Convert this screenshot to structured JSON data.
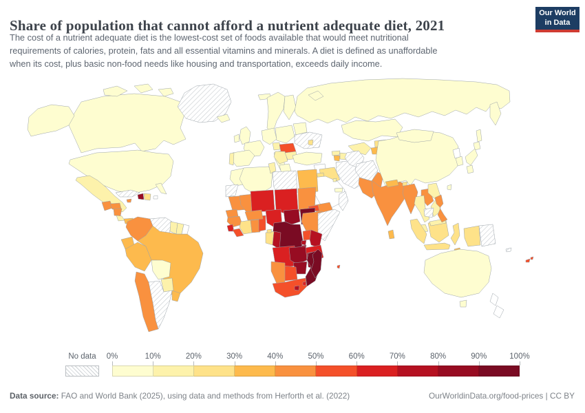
{
  "header": {
    "title": "Share of population that cannot afford a nutrient adequate diet, 2021",
    "subtitle_lines": {
      "0": "The cost of a nutrient adequate diet is the lowest-cost set of foods available that would meet nutritional",
      "1": "requirements of calories, protein, fats and all essential vitamins and minerals. A diet is defined as unaffordable",
      "2": "when its cost, plus basic non-food needs like housing and transportation, exceeds daily income."
    },
    "logo": {
      "line1": "Our World",
      "line2": "in Data",
      "bg": "#1d3d63",
      "accent": "#cf3b32"
    }
  },
  "legend": {
    "no_data_label": "No data",
    "tick_labels": [
      "0%",
      "10%",
      "20%",
      "30%",
      "40%",
      "50%",
      "60%",
      "70%",
      "80%",
      "90%",
      "100%"
    ],
    "bin_colors": [
      "#fefdd0",
      "#fdf2ab",
      "#fee289",
      "#fdba4d",
      "#f9913f",
      "#f4502a",
      "#da2021",
      "#b51121",
      "#970c22",
      "#7a0b23"
    ]
  },
  "footer": {
    "source_label": "Data source:",
    "source_text": " FAO and World Bank (2025), using data and methods from Herforth et al. (2022)",
    "right_text": "OurWorldinData.org/food-prices | CC BY"
  },
  "chart_data": {
    "type": "choropleth-map",
    "title": "Share of population that cannot afford a nutrient adequate diet",
    "year": 2021,
    "unit": "% of population",
    "projection": "world",
    "legend_bins": [
      {
        "range": "0–10%",
        "color": "#fefdd0"
      },
      {
        "range": "10–20%",
        "color": "#fdf2ab"
      },
      {
        "range": "20–30%",
        "color": "#fee289"
      },
      {
        "range": "30–40%",
        "color": "#fdba4d"
      },
      {
        "range": "40–50%",
        "color": "#f9913f"
      },
      {
        "range": "50–60%",
        "color": "#f4502a"
      },
      {
        "range": "60–70%",
        "color": "#da2021"
      },
      {
        "range": "70–80%",
        "color": "#b51121"
      },
      {
        "range": "80–90%",
        "color": "#970c22"
      },
      {
        "range": "90–100%",
        "color": "#7a0b23"
      }
    ],
    "no_data": {
      "label": "No data",
      "style": "gray diagonal hatching"
    },
    "countries": [
      {
        "id": "canada",
        "name": "Canada",
        "value": "0–10%",
        "bin": 0
      },
      {
        "id": "usa",
        "name": "United States",
        "value": "0–10%",
        "bin": 0
      },
      {
        "id": "greenland",
        "name": "Greenland",
        "value": "No data",
        "bin": -1
      },
      {
        "id": "mexico",
        "name": "Mexico",
        "value": "10–20%",
        "bin": 1
      },
      {
        "id": "guatemala",
        "name": "Guatemala",
        "value": "40–50%",
        "bin": 4
      },
      {
        "id": "honduras",
        "name": "Honduras",
        "value": "40–50%",
        "bin": 4
      },
      {
        "id": "nicaragua",
        "name": "Nicaragua",
        "value": "40–50%",
        "bin": 4
      },
      {
        "id": "costa-rica",
        "name": "Costa Rica",
        "value": "10–20%",
        "bin": 1
      },
      {
        "id": "panama",
        "name": "Panama",
        "value": "30–40%",
        "bin": 3
      },
      {
        "id": "cuba",
        "name": "Cuba",
        "value": "No data",
        "bin": -1
      },
      {
        "id": "haiti",
        "name": "Haiti",
        "value": "80–90%",
        "bin": 8
      },
      {
        "id": "dominican-republic",
        "name": "Dominican Republic",
        "value": "20–30%",
        "bin": 2
      },
      {
        "id": "jamaica",
        "name": "Jamaica",
        "value": "40–50%",
        "bin": 4
      },
      {
        "id": "puerto-rico",
        "name": "Puerto Rico",
        "value": "No data",
        "bin": -2
      },
      {
        "id": "colombia",
        "name": "Colombia",
        "value": "40–50%",
        "bin": 4
      },
      {
        "id": "venezuela",
        "name": "Venezuela",
        "value": "No data",
        "bin": -1
      },
      {
        "id": "guyana",
        "name": "Guyana",
        "value": "10–20%",
        "bin": 1
      },
      {
        "id": "suriname",
        "name": "Suriname",
        "value": "10–20%",
        "bin": 1
      },
      {
        "id": "french-guiana",
        "name": "French Guiana",
        "value": "No data",
        "bin": -2
      },
      {
        "id": "ecuador",
        "name": "Ecuador",
        "value": "30–40%",
        "bin": 3
      },
      {
        "id": "peru",
        "name": "Peru",
        "value": "30–40%",
        "bin": 3
      },
      {
        "id": "brazil",
        "name": "Brazil",
        "value": "30–40%",
        "bin": 3
      },
      {
        "id": "bolivia",
        "name": "Bolivia",
        "value": "0–10%",
        "bin": 0
      },
      {
        "id": "paraguay",
        "name": "Paraguay",
        "value": "10–20%",
        "bin": 1
      },
      {
        "id": "chile",
        "name": "Chile",
        "value": "40–50%",
        "bin": 4
      },
      {
        "id": "argentina",
        "name": "Argentina",
        "value": "No data",
        "bin": -1
      },
      {
        "id": "uruguay",
        "name": "Uruguay",
        "value": "30–40%",
        "bin": 3
      },
      {
        "id": "iceland",
        "name": "Iceland",
        "value": "0–10%",
        "bin": 0
      },
      {
        "id": "svalbard",
        "name": "Svalbard",
        "value": "0–10%",
        "bin": 0
      },
      {
        "id": "united-kingdom",
        "name": "United Kingdom",
        "value": "0–10%",
        "bin": 0
      },
      {
        "id": "ireland",
        "name": "Ireland",
        "value": "0–10%",
        "bin": 0
      },
      {
        "id": "scandinavia",
        "name": "Norway & Sweden",
        "value": "0–10%",
        "bin": 0
      },
      {
        "id": "finland",
        "name": "Finland",
        "value": "0–10%",
        "bin": 0
      },
      {
        "id": "denmark",
        "name": "Denmark",
        "value": "0–10%",
        "bin": 0
      },
      {
        "id": "portugal",
        "name": "Portugal",
        "value": "10–20%",
        "bin": 1
      },
      {
        "id": "spain",
        "name": "Spain",
        "value": "0–10%",
        "bin": 0
      },
      {
        "id": "france",
        "name": "France",
        "value": "0–10%",
        "bin": 0
      },
      {
        "id": "central-europe",
        "name": "Germany & Central Europe",
        "value": "0–10%",
        "bin": 0
      },
      {
        "id": "italy",
        "name": "Italy",
        "value": "0–10%",
        "bin": 0
      },
      {
        "id": "poland-baltics",
        "name": "Poland & Baltics",
        "value": "0–10%",
        "bin": 0
      },
      {
        "id": "belarus",
        "name": "Belarus",
        "value": "0–10%",
        "bin": 0
      },
      {
        "id": "ukraine",
        "name": "Ukraine",
        "value": "No data",
        "bin": -1
      },
      {
        "id": "romania",
        "name": "Romania",
        "value": "50–60%",
        "bin": 5
      },
      {
        "id": "hungary",
        "name": "Hungary",
        "value": "10–20%",
        "bin": 1
      },
      {
        "id": "balkans",
        "name": "Serbia & W. Balkans",
        "value": "10–20%",
        "bin": 1
      },
      {
        "id": "greece",
        "name": "Greece",
        "value": "0–10%",
        "bin": 0
      },
      {
        "id": "bulgaria",
        "name": "Bulgaria",
        "value": "10–20%",
        "bin": 1
      },
      {
        "id": "moldova",
        "name": "Moldova",
        "value": "20–30%",
        "bin": 2
      },
      {
        "id": "russia",
        "name": "Russia",
        "value": "0–10%",
        "bin": 0
      },
      {
        "id": "turkey",
        "name": "Turkey",
        "value": "0–10%",
        "bin": 0
      },
      {
        "id": "georgia",
        "name": "Georgia",
        "value": "10–20%",
        "bin": 1
      },
      {
        "id": "armenia",
        "name": "Armenia",
        "value": "30–40%",
        "bin": 3
      },
      {
        "id": "azerbaijan",
        "name": "Azerbaijan",
        "value": "10–20%",
        "bin": 1
      },
      {
        "id": "syria",
        "name": "Syria",
        "value": "No data",
        "bin": -2
      },
      {
        "id": "iraq",
        "name": "Iraq",
        "value": "20–30%",
        "bin": 2
      },
      {
        "id": "jordan",
        "name": "Jordan",
        "value": "20–30%",
        "bin": 2
      },
      {
        "id": "israel",
        "name": "Israel",
        "value": "No data",
        "bin": -2
      },
      {
        "id": "iran",
        "name": "Iran",
        "value": "No data",
        "bin": -1
      },
      {
        "id": "saudi-arabia",
        "name": "Saudi Arabia",
        "value": "No data",
        "bin": -2
      },
      {
        "id": "yemen",
        "name": "Yemen",
        "value": "40–50%",
        "bin": 4
      },
      {
        "id": "oman",
        "name": "Oman",
        "value": "No data",
        "bin": -1
      },
      {
        "id": "uae-qatar",
        "name": "United Arab Emirates & Qatar",
        "value": "0–10%",
        "bin": 0
      },
      {
        "id": "kuwait",
        "name": "Kuwait",
        "value": "10–20%",
        "bin": 1
      },
      {
        "id": "kazakhstan",
        "name": "Kazakhstan",
        "value": "0–10%",
        "bin": 0
      },
      {
        "id": "uzbekistan",
        "name": "Uzbekistan",
        "value": "10–20%",
        "bin": 1
      },
      {
        "id": "turkmenistan",
        "name": "Turkmenistan",
        "value": "No data",
        "bin": -1
      },
      {
        "id": "kyrgyzstan",
        "name": "Kyrgyzstan",
        "value": "20–30%",
        "bin": 2
      },
      {
        "id": "tajikistan",
        "name": "Tajikistan",
        "value": "30–40%",
        "bin": 3
      },
      {
        "id": "afghanistan",
        "name": "Afghanistan",
        "value": "No data",
        "bin": -1
      },
      {
        "id": "pakistan",
        "name": "Pakistan",
        "value": "40–50%",
        "bin": 4
      },
      {
        "id": "india",
        "name": "India",
        "value": "40–50%",
        "bin": 4
      },
      {
        "id": "nepal",
        "name": "Nepal",
        "value": "30–40%",
        "bin": 3
      },
      {
        "id": "bhutan",
        "name": "Bhutan",
        "value": "20–30%",
        "bin": 2
      },
      {
        "id": "bangladesh",
        "name": "Bangladesh",
        "value": "40–50%",
        "bin": 4
      },
      {
        "id": "sri-lanka",
        "name": "Sri Lanka",
        "value": "30–40%",
        "bin": 3
      },
      {
        "id": "china",
        "name": "China",
        "value": "0–10%",
        "bin": 0
      },
      {
        "id": "mongolia",
        "name": "Mongolia",
        "value": "0–10%",
        "bin": 0
      },
      {
        "id": "north-korea",
        "name": "North Korea",
        "value": "No data",
        "bin": -2
      },
      {
        "id": "south-korea",
        "name": "South Korea",
        "value": "0–10%",
        "bin": 0
      },
      {
        "id": "japan",
        "name": "Japan",
        "value": "0–10%",
        "bin": 0
      },
      {
        "id": "taiwan",
        "name": "Taiwan",
        "value": "0–10%",
        "bin": 0
      },
      {
        "id": "myanmar",
        "name": "Myanmar",
        "value": "40–50%",
        "bin": 4
      },
      {
        "id": "thailand",
        "name": "Thailand",
        "value": "10–20%",
        "bin": 1
      },
      {
        "id": "laos",
        "name": "Laos",
        "value": "40–50%",
        "bin": 4
      },
      {
        "id": "vietnam",
        "name": "Vietnam",
        "value": "10–20%",
        "bin": 1
      },
      {
        "id": "cambodia",
        "name": "Cambodia",
        "value": "No data",
        "bin": -1
      },
      {
        "id": "malaysia",
        "name": "Malaysia",
        "value": "10–20%",
        "bin": 1
      },
      {
        "id": "indonesia",
        "name": "Indonesia",
        "value": "20–30%",
        "bin": 2
      },
      {
        "id": "philippines",
        "name": "Philippines",
        "value": "40–50%",
        "bin": 4
      },
      {
        "id": "papua-new-guinea",
        "name": "Papua New Guinea",
        "value": "No data",
        "bin": -1
      },
      {
        "id": "timor-leste",
        "name": "Timor-Leste",
        "value": "30–40%",
        "bin": 3
      },
      {
        "id": "morocco",
        "name": "Morocco",
        "value": "0–10%",
        "bin": 0
      },
      {
        "id": "western-sahara",
        "name": "Western Sahara",
        "value": "No data",
        "bin": -1
      },
      {
        "id": "algeria",
        "name": "Algeria",
        "value": "0–10%",
        "bin": 0
      },
      {
        "id": "tunisia",
        "name": "Tunisia",
        "value": "10–20%",
        "bin": 1
      },
      {
        "id": "libya",
        "name": "Libya",
        "value": "No data",
        "bin": -1
      },
      {
        "id": "egypt",
        "name": "Egypt",
        "value": "30–40%",
        "bin": 3
      },
      {
        "id": "mauritania",
        "name": "Mauritania",
        "value": "40–50%",
        "bin": 4
      },
      {
        "id": "senegal",
        "name": "Senegal",
        "value": "40–50%",
        "bin": 4
      },
      {
        "id": "guinea",
        "name": "Guinea",
        "value": "40–50%",
        "bin": 4
      },
      {
        "id": "sierra-leone",
        "name": "Sierra Leone",
        "value": "60–70%",
        "bin": 6
      },
      {
        "id": "liberia",
        "name": "Liberia",
        "value": "50–60%",
        "bin": 5
      },
      {
        "id": "cote-divoire",
        "name": "Côte d'Ivoire",
        "value": "20–30%",
        "bin": 2
      },
      {
        "id": "ghana",
        "name": "Ghana",
        "value": "40–50%",
        "bin": 4
      },
      {
        "id": "togo-benin",
        "name": "Togo & Benin",
        "value": "50–60%",
        "bin": 5
      },
      {
        "id": "burkina-faso",
        "name": "Burkina Faso",
        "value": "40–50%",
        "bin": 4
      },
      {
        "id": "mali",
        "name": "Mali",
        "value": "40–50%",
        "bin": 4
      },
      {
        "id": "niger",
        "name": "Niger",
        "value": "60–70%",
        "bin": 6
      },
      {
        "id": "chad",
        "name": "Chad",
        "value": "60–70%",
        "bin": 6
      },
      {
        "id": "sudan",
        "name": "Sudan",
        "value": "40–50%",
        "bin": 4
      },
      {
        "id": "eritrea",
        "name": "Eritrea",
        "value": "50–60%",
        "bin": 5
      },
      {
        "id": "nigeria",
        "name": "Nigeria",
        "value": "60–70%",
        "bin": 6
      },
      {
        "id": "cameroon",
        "name": "Cameroon",
        "value": "70–80%",
        "bin": 7
      },
      {
        "id": "central-african-republic",
        "name": "Central African Republic",
        "value": "80–90%",
        "bin": 8
      },
      {
        "id": "south-sudan",
        "name": "South Sudan",
        "value": "90–100%",
        "bin": 9
      },
      {
        "id": "ethiopia",
        "name": "Ethiopia",
        "value": "40–50%",
        "bin": 4
      },
      {
        "id": "somalia",
        "name": "Somalia",
        "value": "No data",
        "bin": -1
      },
      {
        "id": "uganda",
        "name": "Uganda",
        "value": "50–60%",
        "bin": 5
      },
      {
        "id": "kenya",
        "name": "Kenya",
        "value": "70–80%",
        "bin": 7
      },
      {
        "id": "rwanda",
        "name": "Rwanda",
        "value": "70–80%",
        "bin": 7
      },
      {
        "id": "burundi",
        "name": "Burundi",
        "value": "80–90%",
        "bin": 8
      },
      {
        "id": "drc",
        "name": "Democratic Republic of Congo",
        "value": "90–100%",
        "bin": 9
      },
      {
        "id": "congo",
        "name": "Congo",
        "value": "70–80%",
        "bin": 7
      },
      {
        "id": "gabon",
        "name": "Gabon",
        "value": "20–30%",
        "bin": 2
      },
      {
        "id": "equatorial-guinea",
        "name": "Equatorial Guinea",
        "value": "20–30%",
        "bin": 2
      },
      {
        "id": "tanzania",
        "name": "Tanzania",
        "value": "60–70%",
        "bin": 6
      },
      {
        "id": "angola",
        "name": "Angola",
        "value": "60–70%",
        "bin": 6
      },
      {
        "id": "zambia",
        "name": "Zambia",
        "value": "80–90%",
        "bin": 8
      },
      {
        "id": "malawi",
        "name": "Malawi",
        "value": "80–90%",
        "bin": 8
      },
      {
        "id": "mozambique",
        "name": "Mozambique",
        "value": "90–100%",
        "bin": 9
      },
      {
        "id": "zimbabwe",
        "name": "Zimbabwe",
        "value": "80–90%",
        "bin": 8
      },
      {
        "id": "botswana",
        "name": "Botswana",
        "value": "50–60%",
        "bin": 5
      },
      {
        "id": "namibia",
        "name": "Namibia",
        "value": "40–50%",
        "bin": 4
      },
      {
        "id": "south-africa",
        "name": "South Africa",
        "value": "50–60%",
        "bin": 5
      },
      {
        "id": "lesotho",
        "name": "Lesotho",
        "value": "70–80%",
        "bin": 7
      },
      {
        "id": "eswatini",
        "name": "Eswatini",
        "value": "60–70%",
        "bin": 6
      },
      {
        "id": "madagascar",
        "name": "Madagascar",
        "value": "90–100%",
        "bin": 9
      },
      {
        "id": "mauritius",
        "name": "Mauritius",
        "value": "50–60%",
        "bin": 5
      },
      {
        "id": "australia",
        "name": "Australia",
        "value": "0–10%",
        "bin": 0
      },
      {
        "id": "new-zealand",
        "name": "New Zealand",
        "value": "No data",
        "bin": -2
      },
      {
        "id": "new-caledonia",
        "name": "New Caledonia",
        "value": "No data",
        "bin": -1
      },
      {
        "id": "fiji",
        "name": "Fiji",
        "value": "50–60%",
        "bin": 5
      }
    ]
  }
}
